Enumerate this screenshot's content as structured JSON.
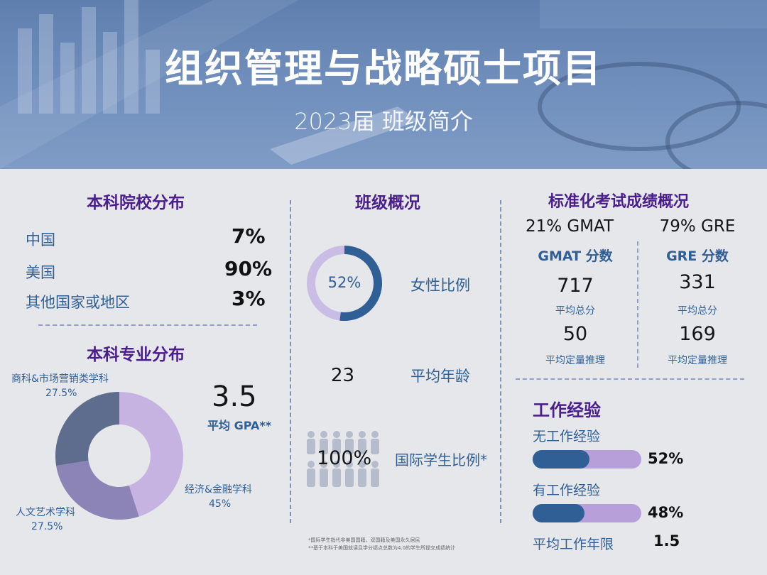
{
  "header": {
    "title": "组织管理与战略硕士项目",
    "subtitle": "2023届 班级简介"
  },
  "undergrad_schools": {
    "title": "本科院校分布",
    "items": [
      {
        "label": "中国",
        "value": "7%"
      },
      {
        "label": "美国",
        "value": "90%"
      },
      {
        "label": "其他国家或地区",
        "value": "3%"
      }
    ]
  },
  "majors": {
    "title": "本科专业分布",
    "chart_data": {
      "type": "pie",
      "categories": [
        "商科&市场营销类学科",
        "经济&金融学科",
        "人文艺术学科"
      ],
      "values": [
        27.5,
        45,
        27.5
      ],
      "labels": [
        "27.5%",
        "45%",
        "27.5%"
      ],
      "colors": [
        "#5e6d8e",
        "#c6b3e2",
        "#8c84b6"
      ]
    },
    "gpa_value": "3.5",
    "gpa_label": "平均 GPA**"
  },
  "class_overview": {
    "title": "班级概况",
    "female_pct": "52%",
    "female_fraction": 0.52,
    "female_label": "女性比例",
    "avg_age": "23",
    "avg_age_label": "平均年龄",
    "intl_pct": "100%",
    "intl_label": "国际学生比例*"
  },
  "test_scores": {
    "title": "标准化考试成绩概况",
    "gmat": {
      "header": "21% GMAT",
      "score_title": "GMAT 分数",
      "total": "717",
      "total_label": "平均总分",
      "quant": "50",
      "quant_label": "平均定量推理"
    },
    "gre": {
      "header": "79% GRE",
      "score_title": "GRE 分数",
      "total": "331",
      "total_label": "平均总分",
      "quant": "169",
      "quant_label": "平均定量推理"
    }
  },
  "work_experience": {
    "title": "工作经验",
    "no_exp": {
      "label": "无工作经验",
      "value": "52%",
      "fraction": 0.52
    },
    "has_exp": {
      "label": "有工作经验",
      "value": "48%",
      "fraction": 0.48
    },
    "avg_years_label": "平均工作年限",
    "avg_years": "1.5"
  },
  "footnotes": [
    "*国际学生指代非美国国籍、双国籍及美国永久居民",
    "**基于本科于美国就读且学分绩点总数为4.0的学生所提交成绩统计"
  ]
}
